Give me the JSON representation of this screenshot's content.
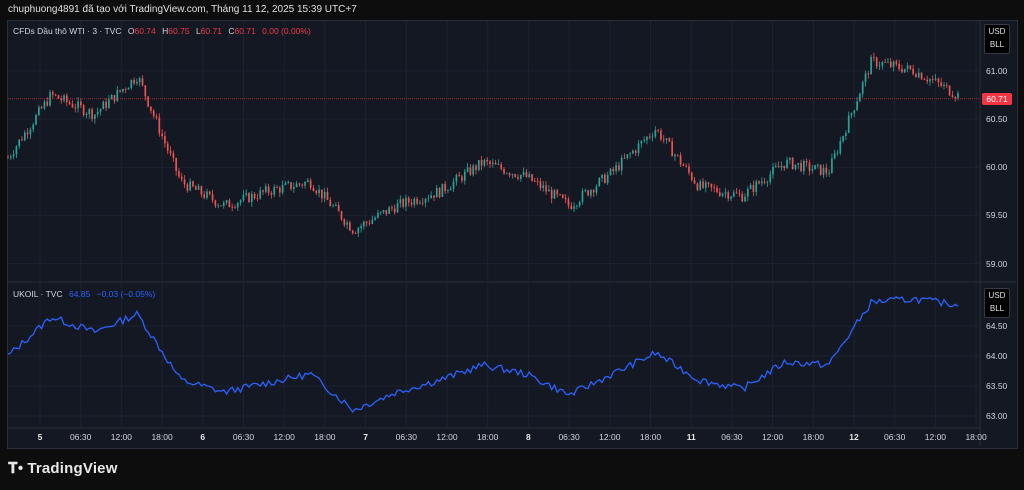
{
  "header": "chuphuong4891 đã tạo với TradingView.com, Tháng 11 12, 2025 15:39 UTC+7",
  "panel1": {
    "symbol": "CFDs Dầu thô WTI · 3 · TVC",
    "o_label": "O",
    "o": "60.74",
    "h_label": "H",
    "h": "60.75",
    "l_label": "L",
    "l": "60.71",
    "c_label": "C",
    "c": "60.71",
    "change": "0.00 (0.00%)",
    "unit1": "USD",
    "unit2": "BLL",
    "price_tag": "60.71",
    "yticks": [
      "61.00",
      "60.50",
      "60.00",
      "59.50",
      "59.00"
    ]
  },
  "panel2": {
    "symbol": "UKOIL · TVC",
    "last": "64.85",
    "change": "−0.03 (−0.05%)",
    "unit1": "USD",
    "unit2": "BLL",
    "yticks": [
      "64.50",
      "64.00",
      "63.50",
      "63.00"
    ]
  },
  "xaxis": [
    {
      "label": "5",
      "bold": true
    },
    {
      "label": "06:30",
      "bold": false
    },
    {
      "label": "12:00",
      "bold": false
    },
    {
      "label": "18:00",
      "bold": false
    },
    {
      "label": "6",
      "bold": true
    },
    {
      "label": "06:30",
      "bold": false
    },
    {
      "label": "12:00",
      "bold": false
    },
    {
      "label": "18:00",
      "bold": false
    },
    {
      "label": "7",
      "bold": true
    },
    {
      "label": "06:30",
      "bold": false
    },
    {
      "label": "12:00",
      "bold": false
    },
    {
      "label": "18:00",
      "bold": false
    },
    {
      "label": "8",
      "bold": true
    },
    {
      "label": "06:30",
      "bold": false
    },
    {
      "label": "12:00",
      "bold": false
    },
    {
      "label": "18:00",
      "bold": false
    },
    {
      "label": "11",
      "bold": true
    },
    {
      "label": "06:30",
      "bold": false
    },
    {
      "label": "12:00",
      "bold": false
    },
    {
      "label": "18:00",
      "bold": false
    },
    {
      "label": "12",
      "bold": true
    },
    {
      "label": "06:30",
      "bold": false
    },
    {
      "label": "12:00",
      "bold": false
    },
    {
      "label": "18:00",
      "bold": false
    }
  ],
  "brand": "TradingView",
  "colors": {
    "up": "#26a69a",
    "down": "#ef5350",
    "line": "#2962ff",
    "last_price": "#f23645"
  },
  "chart_data": [
    {
      "type": "candlestick",
      "name": "CFDs Dầu thô WTI",
      "ylim": [
        58.85,
        61.3
      ],
      "grid": true,
      "x": [
        "5",
        "06:30",
        "12:00",
        "18:00",
        "6",
        "06:30",
        "12:00",
        "18:00",
        "7",
        "06:30",
        "12:00",
        "18:00",
        "8",
        "06:30",
        "12:00",
        "18:00",
        "11",
        "06:30",
        "12:00",
        "18:00",
        "12",
        "06:30",
        "12:00"
      ],
      "values": [
        60.1,
        60.75,
        60.55,
        60.95,
        59.85,
        59.6,
        59.75,
        59.85,
        59.35,
        59.6,
        59.75,
        60.05,
        59.9,
        59.6,
        59.95,
        60.4,
        59.8,
        59.7,
        60.05,
        59.95,
        61.1,
        61.0,
        60.75
      ]
    },
    {
      "type": "line",
      "name": "UKOIL",
      "ylim": [
        62.8,
        65.0
      ],
      "grid": true,
      "x": [
        "5",
        "06:30",
        "12:00",
        "18:00",
        "6",
        "06:30",
        "12:00",
        "18:00",
        "7",
        "06:30",
        "12:00",
        "18:00",
        "8",
        "06:30",
        "12:00",
        "18:00",
        "11",
        "06:30",
        "12:00",
        "18:00",
        "12",
        "06:30",
        "12:00"
      ],
      "values": [
        64.0,
        64.65,
        64.4,
        64.7,
        63.6,
        63.4,
        63.55,
        63.7,
        63.1,
        63.4,
        63.6,
        63.85,
        63.7,
        63.35,
        63.7,
        64.05,
        63.6,
        63.45,
        63.9,
        63.85,
        64.9,
        64.95,
        64.85
      ]
    }
  ]
}
